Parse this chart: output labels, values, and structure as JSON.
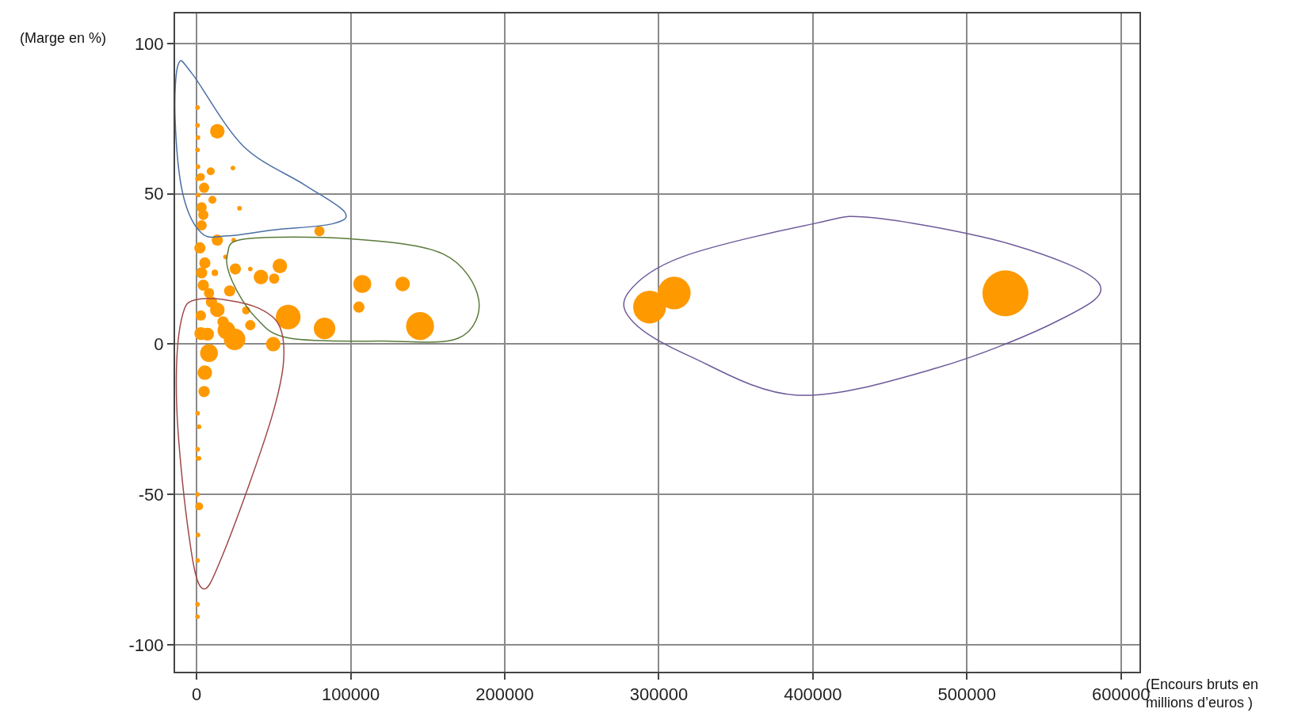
{
  "chart_data": {
    "type": "bubble",
    "xlabel": "(Encours bruts en millions d’euros )",
    "ylabel": "(Marge en %)",
    "xlim": [
      -14000,
      612000
    ],
    "xticks": [
      0,
      100000,
      200000,
      300000,
      400000,
      500000,
      600000
    ],
    "ylim": [
      -109,
      110
    ],
    "yticks": [
      -100,
      -50,
      0,
      50,
      100
    ],
    "grid": true,
    "marker": "circle",
    "relative": false,
    "series": [
      {
        "color": "#ff9900",
        "x": [
          525000,
          310000,
          294000,
          145000,
          107500,
          133700,
          105300,
          83000,
          59400,
          54000,
          41700,
          50300,
          79700,
          24600,
          19300,
          49700,
          13400,
          9100,
          23500,
          27800,
          10200,
          13400,
          25100,
          21400,
          32100,
          34800,
          34800,
          13400,
          8000,
          5300,
          4800,
          1600,
          2700,
          7000,
          3200,
          5300,
          2100,
          3200,
          4300,
          3200,
          2700,
          4800,
          9600,
          4300,
          8000,
          11800,
          18700,
          24000,
          2700,
          17100,
          500,
          500,
          800,
          500,
          800,
          500,
          1000,
          600,
          1500,
          600,
          800,
          1500,
          500,
          800,
          600,
          500,
          500
        ],
        "values": [
          16.9,
          17,
          12.3,
          6,
          20,
          20,
          12.3,
          5.2,
          9,
          26,
          22.3,
          21.8,
          37.6,
          1.6,
          4.6,
          0,
          70.8,
          57.5,
          58.6,
          45.2,
          48,
          34.6,
          25,
          17.7,
          11.2,
          6.3,
          25,
          11.4,
          -3,
          -9.5,
          -15.8,
          -54,
          3.5,
          3.3,
          23.7,
          27,
          32,
          39.5,
          43,
          45.5,
          55.6,
          52,
          14,
          19.6,
          17,
          23.7,
          29,
          34.6,
          9.5,
          7.4,
          78.7,
          72.8,
          68.7,
          64.6,
          59,
          55,
          49.6,
          -23,
          -27.5,
          -35,
          -38,
          -38,
          -50,
          -63.5,
          -72,
          -86.6,
          -90.7
        ],
        "sizes": [
          1,
          0.51,
          0.51,
          0.37,
          0.15,
          0.1,
          0.06,
          0.22,
          0.29,
          0.1,
          0.1,
          0.05,
          0.05,
          0.22,
          0.15,
          0.1,
          0.1,
          0.03,
          0.01,
          0.01,
          0.03,
          0.06,
          0.06,
          0.06,
          0.03,
          0.05,
          0.01,
          0.1,
          0.15,
          0.1,
          0.06,
          0.03,
          0.08,
          0.08,
          0.06,
          0.06,
          0.06,
          0.05,
          0.05,
          0.05,
          0.03,
          0.05,
          0.06,
          0.06,
          0.05,
          0.02,
          0.01,
          0.01,
          0.05,
          0.06,
          0.01,
          0.01,
          0.01,
          0.01,
          0.01,
          0.01,
          0.01,
          0.01,
          0.01,
          0.01,
          0.01,
          0.01,
          0.01,
          0.01,
          0.01,
          0.01,
          0.01
        ]
      }
    ]
  }
}
